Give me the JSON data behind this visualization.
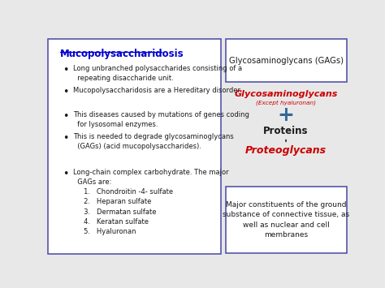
{
  "bg_color": "#e8e8e8",
  "left_box": {
    "title": "Mucopolysaccharidosis",
    "title_color": "#0000cc",
    "bullets": [
      "Long unbranched polysaccharides consisting of a\n  repeating disaccharide unit.",
      "Mucopolysaccharidosis are a Hereditary disorder.",
      "This diseases caused by mutations of genes coding\n  for lysosomal enzymes.",
      "This is needed to degrade glycosaminoglycans\n  (GAGs) (acid mucopolysaccharides).",
      "Long-chain complex carbohydrate. The major\n  GAGs are:\n     1.   Chondroitin -4- sulfate\n     2.   Heparan sulfate\n     3.   Dermatan sulfate\n     4.   Keratan sulfate\n     5.   Hyaluronan"
    ],
    "bullet_color": "#1a1a1a",
    "box_edgecolor": "#5555aa",
    "box_facecolor": "#ffffff"
  },
  "top_right_box": {
    "text": "Glycosaminoglycans (GAGs)",
    "text_color": "#1a1a1a",
    "box_edgecolor": "#5555aa",
    "box_facecolor": "#ffffff"
  },
  "middle_right": {
    "glyco_text": "Glycosaminoglycans",
    "glyco_color": "#cc0000",
    "except_text": "(Except hyaluronan)",
    "except_color": "#cc0000",
    "plus_text": "+",
    "plus_color": "#336699",
    "proteins_text": "Proteins",
    "proteins_color": "#1a1a1a",
    "arrow_color": "#1a1a1a",
    "proteoglycans_text": "Proteoglycans",
    "proteoglycans_color": "#cc0000"
  },
  "bottom_right_box": {
    "text": "Major constituents of the ground\nsubstance of connective tissue, as\nwell as nuclear and cell\nmembranes",
    "text_color": "#1a1a1a",
    "box_edgecolor": "#5555aa",
    "box_facecolor": "#ffffff"
  }
}
